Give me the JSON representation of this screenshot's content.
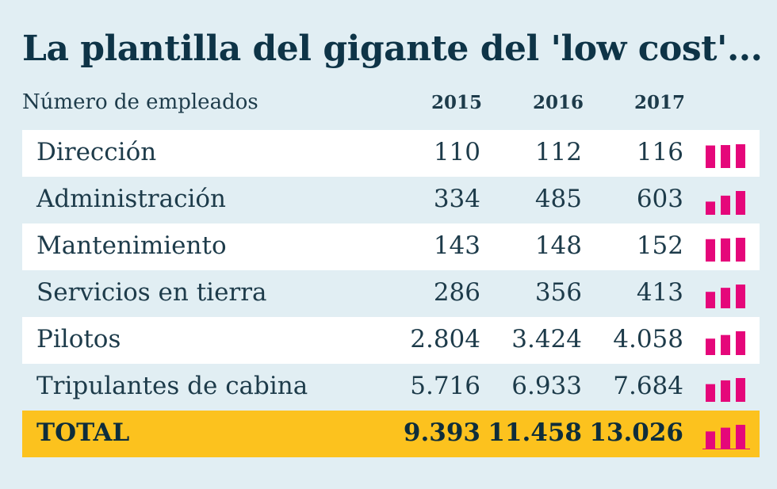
{
  "title": "La plantilla del gigante del 'low cost'...",
  "subtitle": "Número de empleados",
  "years": [
    "2015",
    "2016",
    "2017"
  ],
  "colors": {
    "background": "#e1eef3",
    "bar": "#e5077a",
    "total_bg": "#fcc21e",
    "text": "#1d3b4a"
  },
  "rows": [
    {
      "label": "Dirección",
      "values": [
        "110",
        "112",
        "116"
      ]
    },
    {
      "label": "Administración",
      "values": [
        "334",
        "485",
        "603"
      ]
    },
    {
      "label": "Mantenimiento",
      "values": [
        "143",
        "148",
        "152"
      ]
    },
    {
      "label": "Servicios en tierra",
      "values": [
        "286",
        "356",
        "413"
      ]
    },
    {
      "label": "Pilotos",
      "values": [
        "2.804",
        "3.424",
        "4.058"
      ]
    },
    {
      "label": "Tripulantes de cabina",
      "values": [
        "5.716",
        "6.933",
        "7.684"
      ]
    },
    {
      "label": "TOTAL",
      "values": [
        "9.393",
        "11.458",
        "13.026"
      ]
    }
  ],
  "chart_data": {
    "type": "table",
    "title": "La plantilla del gigante del 'low cost'...",
    "subtitle": "Número de empleados",
    "categories": [
      "2015",
      "2016",
      "2017"
    ],
    "series": [
      {
        "name": "Dirección",
        "values": [
          110,
          112,
          116
        ]
      },
      {
        "name": "Administración",
        "values": [
          334,
          485,
          603
        ]
      },
      {
        "name": "Mantenimiento",
        "values": [
          143,
          148,
          152
        ]
      },
      {
        "name": "Servicios en tierra",
        "values": [
          286,
          356,
          413
        ]
      },
      {
        "name": "Pilotos",
        "values": [
          2804,
          3424,
          4058
        ]
      },
      {
        "name": "Tripulantes de cabina",
        "values": [
          5716,
          6933,
          7684
        ]
      },
      {
        "name": "TOTAL",
        "values": [
          9393,
          11458,
          13026
        ]
      }
    ]
  }
}
